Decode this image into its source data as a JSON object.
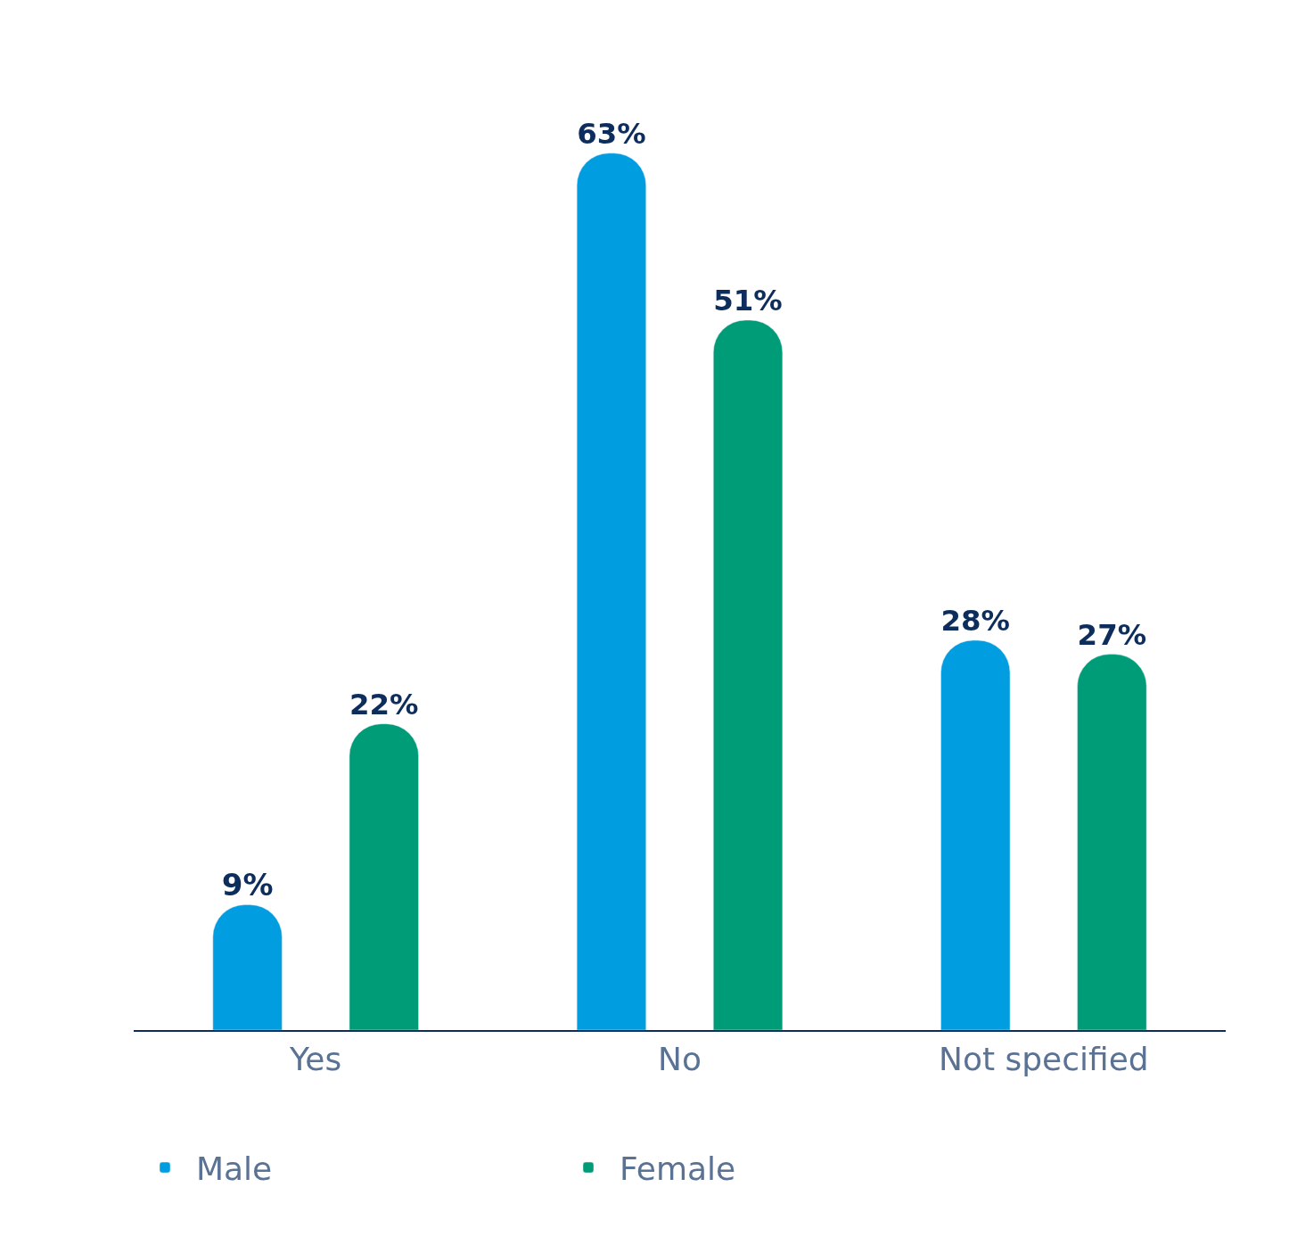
{
  "chart_data": {
    "type": "bar",
    "categories": [
      "Yes",
      "No",
      "Not specified"
    ],
    "series": [
      {
        "name": "Male",
        "color": "#009ee0",
        "values": [
          9,
          63,
          28
        ],
        "value_labels": [
          "9%",
          "63%",
          "28%"
        ]
      },
      {
        "name": "Female",
        "color": "#009b77",
        "values": [
          22,
          51,
          27
        ],
        "value_labels": [
          "22%",
          "51%",
          "27%"
        ]
      }
    ],
    "legend": "bottom left"
  }
}
